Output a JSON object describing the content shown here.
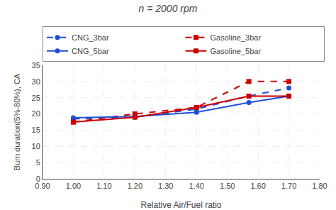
{
  "chart_data": {
    "type": "line",
    "title": "n = 2000 rpm",
    "x_label": "Relative Air/Fuel ratio",
    "y_label": "Burn duration(5%-80%), CA",
    "x": [
      1.0,
      1.2,
      1.4,
      1.57,
      1.7
    ],
    "series": [
      {
        "name": "CNG_3bar",
        "color": "#1f4fd8",
        "line_style": "dashed",
        "marker": "circle",
        "values": [
          18.5,
          19.0,
          21.5,
          25.5,
          28.0
        ]
      },
      {
        "name": "Gasoline_3bar",
        "color": "#cc0000",
        "line_style": "dashed",
        "marker": "square",
        "values": [
          17.5,
          20.0,
          22.0,
          30.0,
          30.0
        ]
      },
      {
        "name": "CNG_5bar",
        "color": "#1f4fd8",
        "line_style": "solid",
        "marker": "circle",
        "values": [
          18.8,
          19.2,
          20.5,
          23.5,
          25.5
        ]
      },
      {
        "name": "Gasoline_5bar",
        "color": "#cc0000",
        "line_style": "solid",
        "marker": "square",
        "values": [
          17.5,
          19.0,
          22.0,
          25.5,
          25.5
        ]
      }
    ],
    "xlim": [
      0.9,
      1.8
    ],
    "xticks": [
      {
        "value": 0.9,
        "label": "0.90"
      },
      {
        "value": 1.0,
        "label": "1.00"
      },
      {
        "value": 1.1,
        "label": "1.10"
      },
      {
        "value": 1.2,
        "label": "1.20"
      },
      {
        "value": 1.3,
        "label": "1.30"
      },
      {
        "value": 1.4,
        "label": "1.40"
      },
      {
        "value": 1.5,
        "label": "1.50"
      },
      {
        "value": 1.6,
        "label": "1.60"
      },
      {
        "value": 1.7,
        "label": "1.70"
      },
      {
        "value": 1.8,
        "label": "1.80"
      }
    ],
    "ylim": [
      0,
      35
    ],
    "yticks": [
      0,
      5,
      10,
      15,
      20,
      25,
      30,
      35
    ],
    "grid": true,
    "legend": "top"
  }
}
